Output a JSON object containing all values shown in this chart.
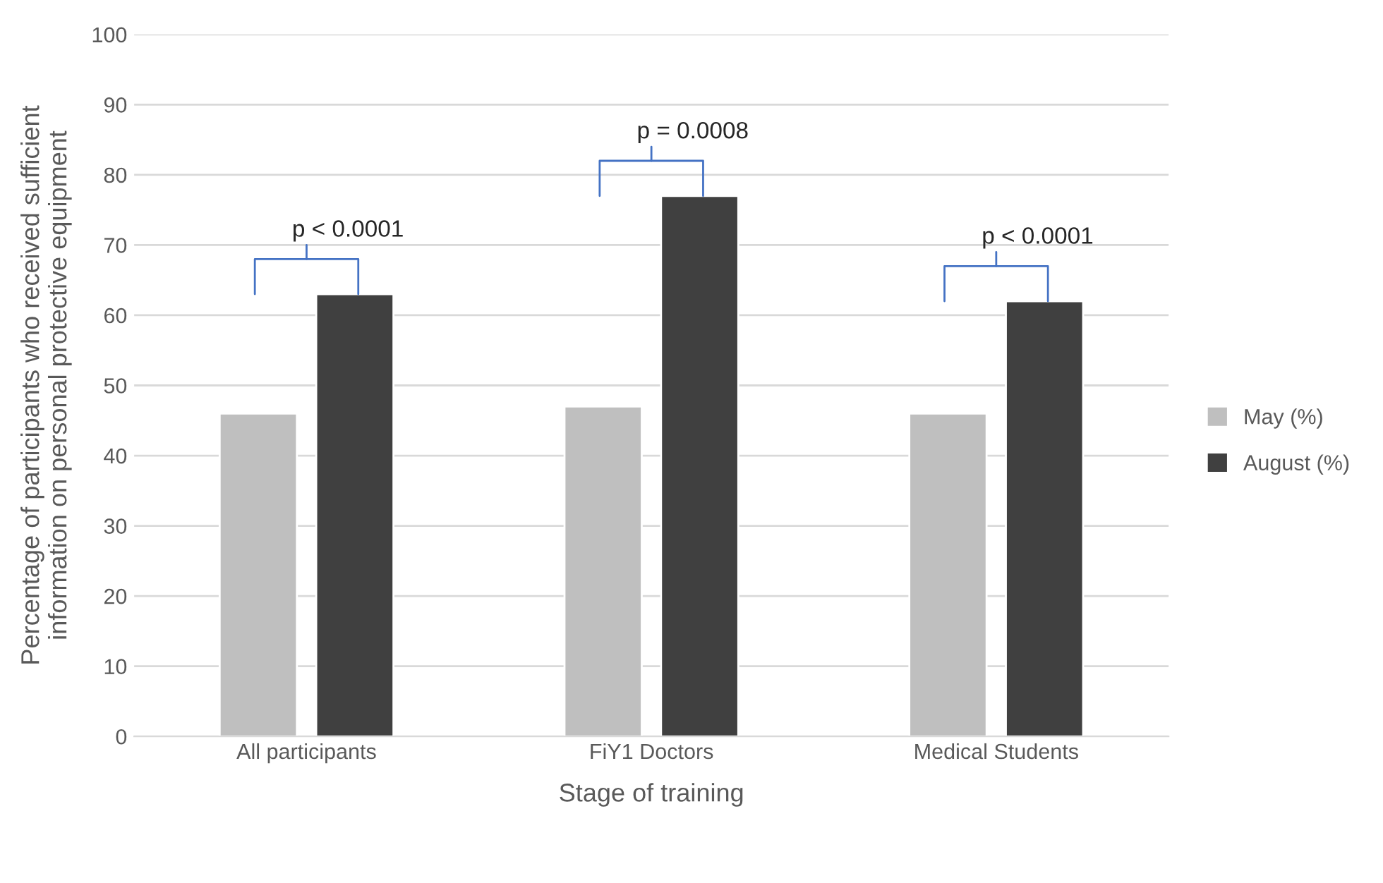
{
  "chart_data": {
    "type": "bar",
    "xlabel": "Stage of training",
    "ylabel": "Percentage of participants who received sufficient\ninformation on personal protective equipment",
    "categories": [
      "All participants",
      "FiY1 Doctors",
      "Medical Students"
    ],
    "series": [
      {
        "name": "May (%)",
        "color": "#bfbfbf",
        "values": [
          46,
          47,
          46
        ]
      },
      {
        "name": "August (%)",
        "color": "#404040",
        "values": [
          63,
          77,
          62
        ]
      }
    ],
    "ylim": [
      0,
      100
    ],
    "yticks": [
      0,
      10,
      20,
      30,
      40,
      50,
      60,
      70,
      80,
      90,
      100
    ],
    "grid": "y",
    "legend": "right",
    "annotations": [
      "p < 0.0001",
      "p = 0.0008",
      "p < 0.0001"
    ]
  }
}
